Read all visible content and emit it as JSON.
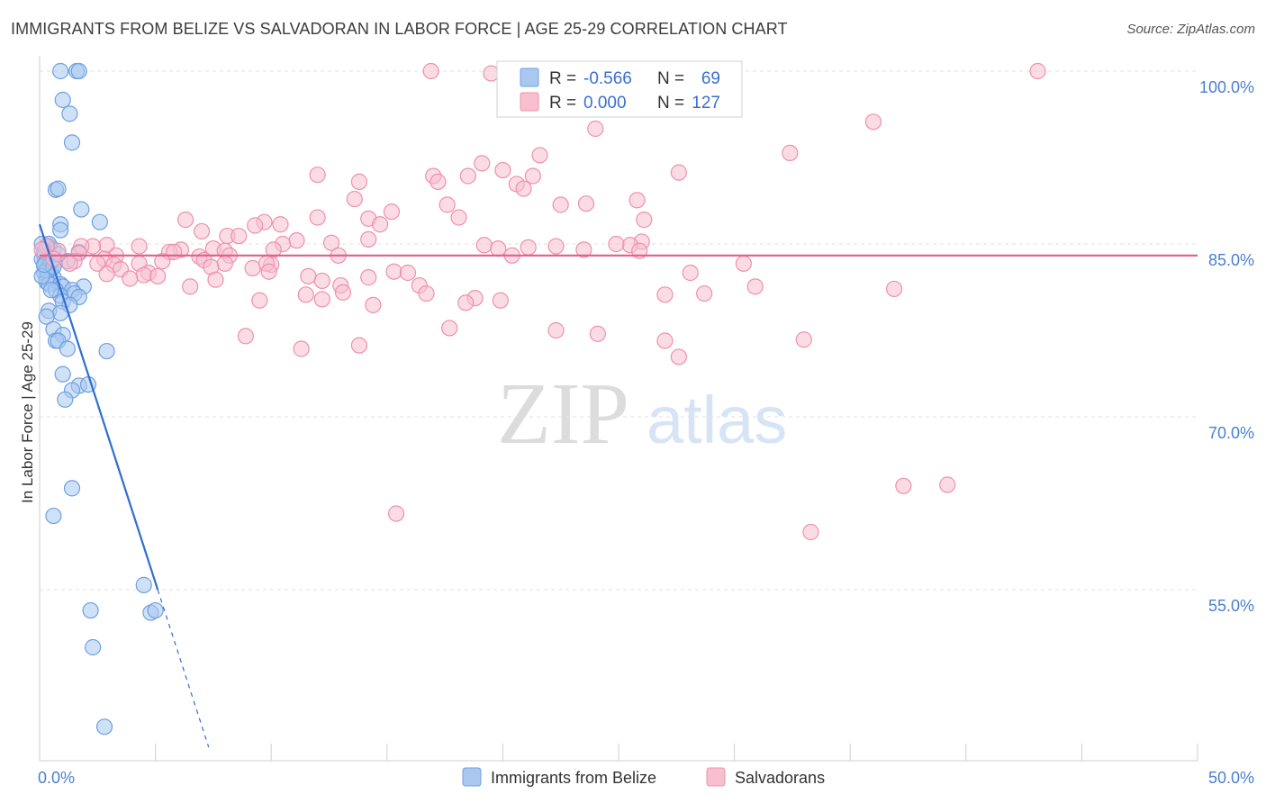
{
  "title": "IMMIGRANTS FROM BELIZE VS SALVADORAN IN LABOR FORCE | AGE 25-29 CORRELATION CHART",
  "source": "Source: ZipAtlas.com",
  "watermark": {
    "zip": "ZIP",
    "atlas": "atlas"
  },
  "colors": {
    "blue_fill": "#a8c8f0",
    "blue_stroke": "#6fa0e0",
    "blue_line": "#2f6fd0",
    "pink_fill": "#f7bfd0",
    "pink_stroke": "#ee90ae",
    "pink_line": "#e0608a",
    "grid": "#e2e2e2",
    "tick_text": "#4a7fd0"
  },
  "stats_legend": [
    {
      "series": "Immigrants from Belize",
      "r_label": "R =",
      "r_value": "-0.566",
      "n_label": "N =",
      "n_value": "69"
    },
    {
      "series": "Salvadorans",
      "r_label": "R =",
      "r_value": "0.000",
      "n_label": "N =",
      "n_value": "127"
    }
  ],
  "chart_data": {
    "type": "scatter",
    "title": "IMMIGRANTS FROM BELIZE VS SALVADORAN IN LABOR FORCE | AGE 25-29 CORRELATION CHART",
    "xlabel": "",
    "ylabel": "In Labor Force | Age 25-29",
    "xlim": [
      0,
      50
    ],
    "ylim": [
      40,
      101.5
    ],
    "x_tick_labels": [
      {
        "value": 0,
        "label": "0.0%"
      },
      {
        "value": 50,
        "label": "50.0%"
      }
    ],
    "y_tick_labels": [
      {
        "value": 100,
        "label": "100.0%"
      },
      {
        "value": 85,
        "label": "85.0%"
      },
      {
        "value": 70,
        "label": "70.0%"
      },
      {
        "value": 55,
        "label": "55.0%"
      }
    ],
    "series": [
      {
        "name": "Immigrants from Belize",
        "color": "blue",
        "trend": {
          "x_start": 0.0,
          "y_start": 86.7,
          "x_end": 5.1,
          "y_end": 55.0,
          "dashed_to_x": 7.3
        },
        "points": [
          [
            0.9,
            100.0
          ],
          [
            1.6,
            100.0
          ],
          [
            1.7,
            100.0
          ],
          [
            1.0,
            97.5
          ],
          [
            1.3,
            96.3
          ],
          [
            1.4,
            93.8
          ],
          [
            0.7,
            89.7
          ],
          [
            0.8,
            89.8
          ],
          [
            1.8,
            88.0
          ],
          [
            2.6,
            86.9
          ],
          [
            0.9,
            86.7
          ],
          [
            0.9,
            86.2
          ],
          [
            0.1,
            85.0
          ],
          [
            0.4,
            84.8
          ],
          [
            0.6,
            84.5
          ],
          [
            0.2,
            84.0
          ],
          [
            0.1,
            83.7
          ],
          [
            0.3,
            83.4
          ],
          [
            0.2,
            83.1
          ],
          [
            0.4,
            83.0
          ],
          [
            0.5,
            82.8
          ],
          [
            0.2,
            82.5
          ],
          [
            0.6,
            82.1
          ],
          [
            0.3,
            82.0
          ],
          [
            1.2,
            83.5
          ],
          [
            1.7,
            84.3
          ],
          [
            0.3,
            81.7
          ],
          [
            0.4,
            81.5
          ],
          [
            0.9,
            81.5
          ],
          [
            1.0,
            81.3
          ],
          [
            1.9,
            81.3
          ],
          [
            0.7,
            81.0
          ],
          [
            1.4,
            81.0
          ],
          [
            1.5,
            80.7
          ],
          [
            0.9,
            80.5
          ],
          [
            1.7,
            80.4
          ],
          [
            0.5,
            81.0
          ],
          [
            1.0,
            80.0
          ],
          [
            1.3,
            79.7
          ],
          [
            0.4,
            79.2
          ],
          [
            0.9,
            79.0
          ],
          [
            0.3,
            78.7
          ],
          [
            0.6,
            77.6
          ],
          [
            1.0,
            77.1
          ],
          [
            0.7,
            76.6
          ],
          [
            0.8,
            76.6
          ],
          [
            1.2,
            75.9
          ],
          [
            2.9,
            75.7
          ],
          [
            1.0,
            73.7
          ],
          [
            1.7,
            72.7
          ],
          [
            2.1,
            72.8
          ],
          [
            1.4,
            72.3
          ],
          [
            1.1,
            71.5
          ],
          [
            1.4,
            63.8
          ],
          [
            0.6,
            61.4
          ],
          [
            4.5,
            55.4
          ],
          [
            4.8,
            53.0
          ],
          [
            5.0,
            53.2
          ],
          [
            2.2,
            53.2
          ],
          [
            2.3,
            50.0
          ],
          [
            2.8,
            43.1
          ],
          [
            0.3,
            82.7
          ],
          [
            0.2,
            84.3
          ],
          [
            0.5,
            83.5
          ],
          [
            0.1,
            82.2
          ],
          [
            0.6,
            83.0
          ],
          [
            0.8,
            84.1
          ],
          [
            0.4,
            85.0
          ],
          [
            0.2,
            83.2
          ]
        ]
      },
      {
        "name": "Salvadorans",
        "color": "pink",
        "trend": {
          "x_start": 0.0,
          "y_start": 84.0,
          "x_end": 50.0,
          "y_end": 84.0
        },
        "points": [
          [
            16.9,
            100.0
          ],
          [
            19.5,
            99.8
          ],
          [
            24.7,
            99.8
          ],
          [
            43.1,
            100.0
          ],
          [
            24.0,
            95.0
          ],
          [
            36.0,
            95.6
          ],
          [
            32.4,
            92.9
          ],
          [
            21.6,
            92.7
          ],
          [
            19.1,
            92.0
          ],
          [
            20.0,
            91.4
          ],
          [
            12.0,
            91.0
          ],
          [
            17.0,
            90.9
          ],
          [
            18.5,
            90.9
          ],
          [
            21.3,
            90.9
          ],
          [
            27.6,
            91.2
          ],
          [
            17.2,
            90.4
          ],
          [
            13.8,
            90.4
          ],
          [
            20.6,
            90.2
          ],
          [
            20.9,
            89.8
          ],
          [
            13.6,
            88.9
          ],
          [
            25.8,
            88.8
          ],
          [
            17.6,
            88.4
          ],
          [
            22.5,
            88.4
          ],
          [
            23.6,
            88.5
          ],
          [
            15.2,
            87.8
          ],
          [
            18.1,
            87.3
          ],
          [
            6.3,
            87.1
          ],
          [
            9.7,
            86.9
          ],
          [
            10.4,
            86.7
          ],
          [
            12.0,
            87.3
          ],
          [
            14.2,
            87.2
          ],
          [
            26.1,
            87.1
          ],
          [
            14.7,
            86.7
          ],
          [
            7.0,
            86.1
          ],
          [
            9.3,
            86.6
          ],
          [
            8.1,
            85.7
          ],
          [
            8.6,
            85.7
          ],
          [
            14.2,
            85.4
          ],
          [
            11.1,
            85.3
          ],
          [
            12.6,
            85.1
          ],
          [
            10.5,
            85.0
          ],
          [
            19.2,
            84.9
          ],
          [
            26.0,
            85.2
          ],
          [
            25.5,
            84.9
          ],
          [
            24.9,
            85.0
          ],
          [
            4.3,
            84.8
          ],
          [
            2.9,
            84.9
          ],
          [
            2.3,
            84.8
          ],
          [
            1.8,
            84.8
          ],
          [
            7.5,
            84.6
          ],
          [
            6.1,
            84.5
          ],
          [
            8.0,
            84.4
          ],
          [
            10.1,
            84.5
          ],
          [
            19.8,
            84.6
          ],
          [
            21.1,
            84.7
          ],
          [
            22.3,
            84.8
          ],
          [
            23.5,
            84.5
          ],
          [
            25.9,
            84.4
          ],
          [
            5.6,
            84.3
          ],
          [
            5.8,
            84.3
          ],
          [
            6.9,
            83.9
          ],
          [
            8.2,
            84.0
          ],
          [
            12.9,
            84.0
          ],
          [
            20.4,
            84.0
          ],
          [
            1.7,
            84.2
          ],
          [
            3.3,
            84.0
          ],
          [
            2.8,
            83.7
          ],
          [
            1.5,
            83.5
          ],
          [
            0.8,
            84.4
          ],
          [
            0.3,
            84.8
          ],
          [
            0.1,
            84.5
          ],
          [
            0.6,
            83.7
          ],
          [
            1.3,
            83.3
          ],
          [
            2.5,
            83.3
          ],
          [
            4.3,
            83.3
          ],
          [
            5.3,
            83.5
          ],
          [
            7.1,
            83.6
          ],
          [
            3.2,
            83.2
          ],
          [
            8.0,
            83.3
          ],
          [
            10.0,
            83.2
          ],
          [
            7.4,
            83.0
          ],
          [
            9.2,
            82.9
          ],
          [
            3.5,
            82.8
          ],
          [
            4.7,
            82.5
          ],
          [
            11.6,
            82.2
          ],
          [
            2.9,
            82.4
          ],
          [
            4.5,
            82.3
          ],
          [
            5.1,
            82.2
          ],
          [
            3.9,
            82.0
          ],
          [
            7.6,
            81.9
          ],
          [
            9.8,
            83.3
          ],
          [
            9.9,
            82.6
          ],
          [
            12.2,
            81.8
          ],
          [
            14.2,
            82.1
          ],
          [
            15.3,
            82.6
          ],
          [
            15.9,
            82.5
          ],
          [
            28.1,
            82.5
          ],
          [
            30.4,
            83.3
          ],
          [
            16.4,
            81.4
          ],
          [
            13.0,
            81.4
          ],
          [
            6.5,
            81.3
          ],
          [
            11.5,
            80.6
          ],
          [
            13.1,
            80.8
          ],
          [
            16.7,
            80.7
          ],
          [
            9.5,
            80.1
          ],
          [
            12.2,
            80.2
          ],
          [
            18.8,
            80.3
          ],
          [
            18.4,
            79.9
          ],
          [
            19.9,
            80.1
          ],
          [
            14.4,
            79.7
          ],
          [
            30.9,
            81.3
          ],
          [
            27.0,
            80.6
          ],
          [
            28.7,
            80.7
          ],
          [
            36.9,
            81.1
          ],
          [
            17.7,
            77.7
          ],
          [
            22.3,
            77.5
          ],
          [
            24.1,
            77.2
          ],
          [
            8.9,
            77.0
          ],
          [
            27.0,
            76.6
          ],
          [
            13.8,
            76.2
          ],
          [
            11.3,
            75.9
          ],
          [
            33.0,
            76.7
          ],
          [
            27.6,
            75.2
          ],
          [
            15.4,
            61.6
          ],
          [
            33.3,
            60.0
          ],
          [
            37.3,
            64.0
          ],
          [
            39.2,
            64.1
          ]
        ]
      }
    ]
  },
  "bottom_legend": [
    {
      "label": "Immigrants from Belize",
      "color": "blue"
    },
    {
      "label": "Salvadorans",
      "color": "pink"
    }
  ]
}
